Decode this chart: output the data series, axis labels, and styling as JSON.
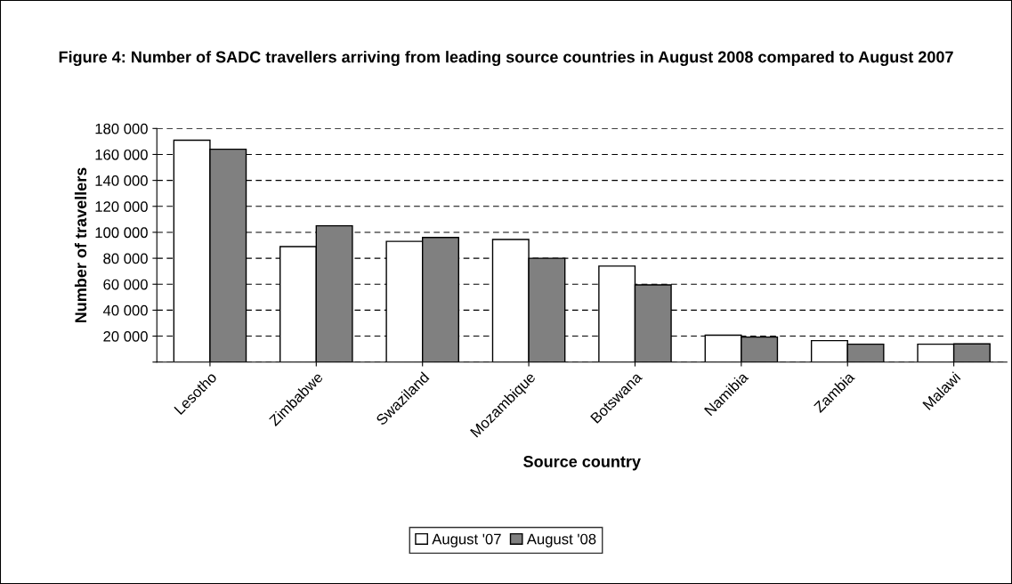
{
  "chart_data": {
    "type": "bar",
    "title": "Figure 4: Number of SADC travellers arriving from leading source countries in August 2008 compared to August 2007",
    "xlabel": "Source country",
    "ylabel": "Number of travellers",
    "categories": [
      "Lesotho",
      "Zimbabwe",
      "Swaziland",
      "Mozambique",
      "Botswana",
      "Namibia",
      "Zambia",
      "Malawi"
    ],
    "series": [
      {
        "name": "August '07",
        "color": "#ffffff",
        "values": [
          171000,
          89000,
          93000,
          94500,
          74000,
          20700,
          16500,
          13800
        ]
      },
      {
        "name": "August '08",
        "color": "#808080",
        "values": [
          164000,
          105000,
          96000,
          80000,
          59500,
          19300,
          13800,
          14000
        ]
      }
    ],
    "ylim": [
      0,
      180000
    ],
    "yticks": [
      {
        "value": 0,
        "label": null
      },
      {
        "value": 20000,
        "label": "20 000"
      },
      {
        "value": 40000,
        "label": "40 000"
      },
      {
        "value": 60000,
        "label": "60 000"
      },
      {
        "value": 80000,
        "label": "80 000"
      },
      {
        "value": 100000,
        "label": "100 000"
      },
      {
        "value": 120000,
        "label": "120 000"
      },
      {
        "value": 140000,
        "label": "140 000"
      },
      {
        "value": 160000,
        "label": "160 000"
      },
      {
        "value": 180000,
        "label": "180 000"
      }
    ],
    "grid": "y",
    "line_style": "dashed",
    "legend": "bottom"
  }
}
